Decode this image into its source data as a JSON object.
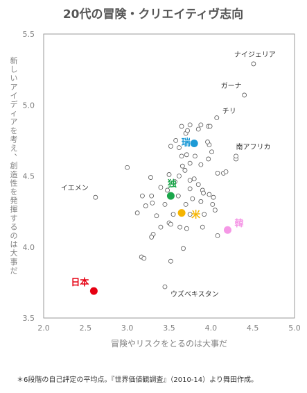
{
  "chart_data": {
    "type": "scatter",
    "title": "20代の冒険・クリエイティヴ志向",
    "xlabel": "冒険やリスクをとるのは大事だ",
    "ylabel": "新しいアイディアを考え、創造性を発揮するのは大事だ",
    "xlim": [
      2.0,
      5.0
    ],
    "ylim": [
      3.5,
      5.5
    ],
    "xticks": [
      "2.0",
      "2.5",
      "3.0",
      "3.5",
      "4.0",
      "4.5",
      "5.0"
    ],
    "yticks": [
      "3.5",
      "4.0",
      "4.5",
      "5.0",
      "5.5"
    ],
    "grid": false,
    "footnote": "＊6段階の自己評定の平均点。『世界価値観調査』（2010-14）より舞田作成。",
    "highlighted": [
      {
        "name": "日本",
        "x": 2.6,
        "y": 3.69,
        "color": "#e60012"
      },
      {
        "name": "独",
        "x": 3.52,
        "y": 4.36,
        "color": "#1aa64a"
      },
      {
        "name": "米",
        "x": 3.65,
        "y": 4.24,
        "color": "#f5b400"
      },
      {
        "name": "瑞",
        "x": 3.8,
        "y": 4.73,
        "color": "#1d9ad6"
      },
      {
        "name": "韓",
        "x": 4.2,
        "y": 4.12,
        "color": "#f598e6"
      }
    ],
    "labeled": [
      {
        "name": "ナイジェリア",
        "x": 4.51,
        "y": 5.29
      },
      {
        "name": "ガーナ",
        "x": 4.4,
        "y": 5.07
      },
      {
        "name": "チリ",
        "x": 4.07,
        "y": 4.91
      },
      {
        "name": "南アフリカ",
        "x": 4.3,
        "y": 4.64
      },
      {
        "name": "イエメン",
        "x": 2.62,
        "y": 4.35
      },
      {
        "name": "ウズベキスタン",
        "x": 3.45,
        "y": 3.72
      }
    ],
    "others": [
      [
        3.0,
        4.56
      ],
      [
        3.28,
        4.49
      ],
      [
        3.4,
        4.42
      ],
      [
        3.18,
        4.36
      ],
      [
        3.29,
        4.36
      ],
      [
        3.48,
        4.4
      ],
      [
        3.57,
        4.46
      ],
      [
        3.62,
        4.5
      ],
      [
        3.5,
        4.51
      ],
      [
        3.69,
        4.54
      ],
      [
        3.8,
        4.48
      ],
      [
        3.75,
        4.47
      ],
      [
        3.85,
        4.44
      ],
      [
        3.9,
        4.4
      ],
      [
        3.75,
        4.41
      ],
      [
        3.98,
        4.37
      ],
      [
        4.03,
        4.35
      ],
      [
        3.91,
        4.38
      ],
      [
        3.61,
        4.36
      ],
      [
        3.78,
        4.34
      ],
      [
        3.88,
        4.32
      ],
      [
        3.7,
        4.3
      ],
      [
        3.45,
        4.3
      ],
      [
        3.3,
        4.31
      ],
      [
        3.22,
        4.29
      ],
      [
        3.12,
        4.24
      ],
      [
        3.35,
        4.22
      ],
      [
        3.55,
        4.23
      ],
      [
        3.75,
        4.23
      ],
      [
        3.92,
        4.23
      ],
      [
        4.05,
        4.26
      ],
      [
        4.02,
        4.3
      ],
      [
        3.5,
        4.17
      ],
      [
        3.52,
        4.16
      ],
      [
        3.63,
        4.14
      ],
      [
        3.71,
        4.13
      ],
      [
        3.4,
        4.14
      ],
      [
        3.31,
        4.09
      ],
      [
        3.29,
        4.07
      ],
      [
        3.9,
        4.14
      ],
      [
        4.08,
        4.08
      ],
      [
        3.17,
        3.93
      ],
      [
        3.2,
        3.92
      ],
      [
        3.52,
        3.9
      ],
      [
        3.67,
        3.99
      ],
      [
        3.52,
        4.71
      ],
      [
        3.62,
        4.7
      ],
      [
        3.71,
        4.65
      ],
      [
        3.81,
        4.64
      ],
      [
        3.65,
        4.64
      ],
      [
        3.75,
        4.59
      ],
      [
        3.66,
        4.57
      ],
      [
        3.88,
        4.58
      ],
      [
        3.97,
        4.62
      ],
      [
        4.01,
        4.67
      ],
      [
        3.98,
        4.72
      ],
      [
        3.96,
        4.74
      ],
      [
        3.58,
        4.75
      ],
      [
        3.7,
        4.8
      ],
      [
        3.72,
        4.82
      ],
      [
        3.85,
        4.83
      ],
      [
        3.97,
        4.85
      ],
      [
        3.99,
        4.85
      ],
      [
        3.65,
        4.85
      ],
      [
        3.75,
        4.86
      ],
      [
        3.88,
        4.86
      ],
      [
        4.08,
        4.52
      ],
      [
        4.15,
        4.52
      ],
      [
        4.18,
        4.53
      ],
      [
        4.3,
        4.62
      ]
    ]
  }
}
